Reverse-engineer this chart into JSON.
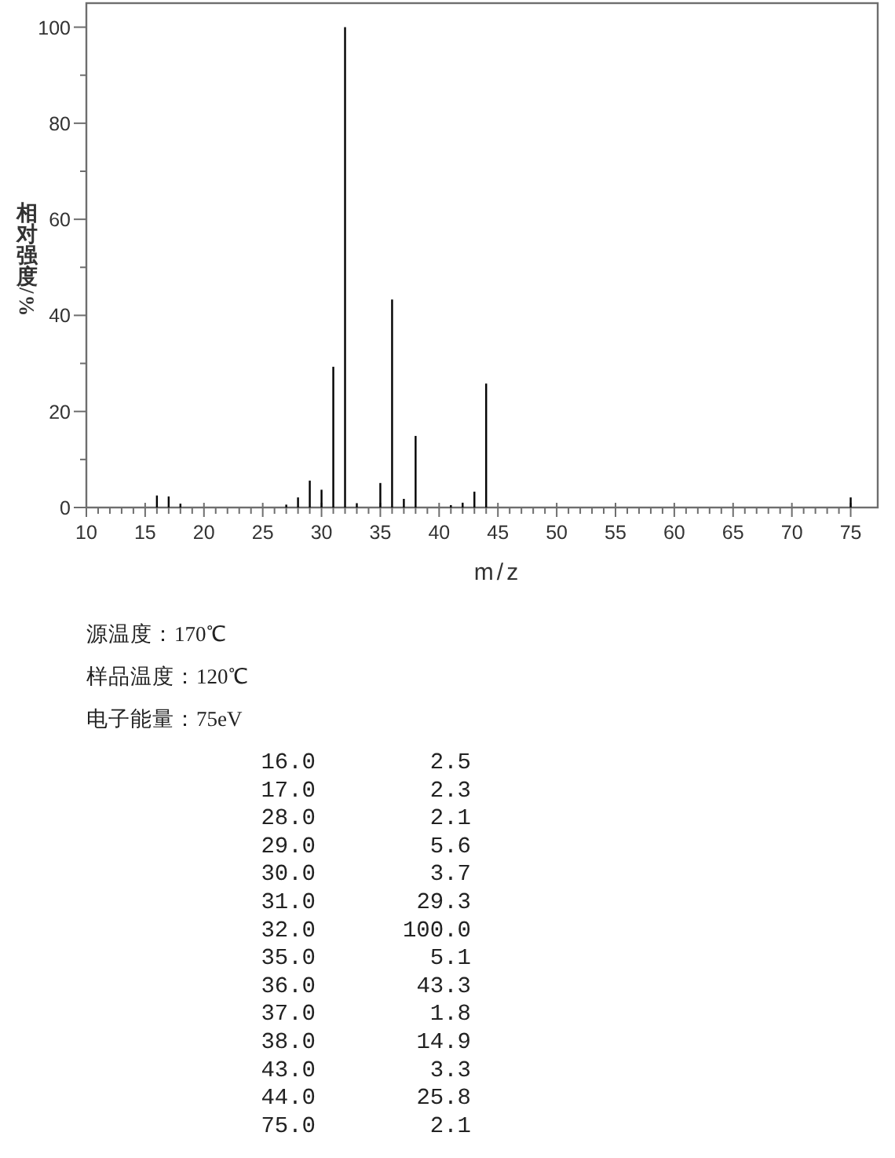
{
  "chart_data": [
    {
      "type": "bar",
      "xlabel": "m/z",
      "ylabel": "相对强度/%",
      "x": [
        16,
        17,
        18,
        27,
        28,
        29,
        30,
        31,
        32,
        33,
        35,
        36,
        37,
        38,
        41,
        42,
        43,
        44,
        75
      ],
      "values": [
        2.5,
        2.3,
        0.8,
        0.6,
        2.1,
        5.6,
        3.7,
        29.3,
        100,
        0.9,
        5.1,
        43.3,
        1.8,
        14.9,
        0.5,
        1.0,
        3.3,
        25.8,
        2.1
      ],
      "color": "#000000",
      "xlim": [
        10,
        77.3
      ],
      "ylim": [
        0,
        105
      ],
      "xticks": [
        10,
        {
          "value": 11,
          "label": null
        },
        {
          "value": 12,
          "label": null
        },
        {
          "value": 13,
          "label": null
        },
        {
          "value": 14,
          "label": null
        },
        15,
        {
          "value": 16,
          "label": null
        },
        {
          "value": 17,
          "label": null
        },
        {
          "value": 18,
          "label": null
        },
        {
          "value": 19,
          "label": null
        },
        20,
        {
          "value": 21,
          "label": null
        },
        {
          "value": 22,
          "label": null
        },
        {
          "value": 23,
          "label": null
        },
        {
          "value": 24,
          "label": null
        },
        25,
        {
          "value": 26,
          "label": null
        },
        {
          "value": 27,
          "label": null
        },
        {
          "value": 28,
          "label": null
        },
        {
          "value": 29,
          "label": null
        },
        30,
        {
          "value": 31,
          "label": null
        },
        {
          "value": 32,
          "label": null
        },
        {
          "value": 33,
          "label": null
        },
        {
          "value": 34,
          "label": null
        },
        35,
        {
          "value": 36,
          "label": null
        },
        {
          "value": 37,
          "label": null
        },
        {
          "value": 38,
          "label": null
        },
        {
          "value": 39,
          "label": null
        },
        40,
        {
          "value": 41,
          "label": null
        },
        {
          "value": 42,
          "label": null
        },
        {
          "value": 43,
          "label": null
        },
        {
          "value": 44,
          "label": null
        },
        45,
        {
          "value": 46,
          "label": null
        },
        {
          "value": 47,
          "label": null
        },
        {
          "value": 48,
          "label": null
        },
        {
          "value": 49,
          "label": null
        },
        50,
        {
          "value": 51,
          "label": null
        },
        {
          "value": 52,
          "label": null
        },
        {
          "value": 53,
          "label": null
        },
        {
          "value": 54,
          "label": null
        },
        55,
        {
          "value": 56,
          "label": null
        },
        {
          "value": 57,
          "label": null
        },
        {
          "value": 58,
          "label": null
        },
        {
          "value": 59,
          "label": null
        },
        60,
        {
          "value": 61,
          "label": null
        },
        {
          "value": 62,
          "label": null
        },
        {
          "value": 63,
          "label": null
        },
        {
          "value": 64,
          "label": null
        },
        65,
        {
          "value": 66,
          "label": null
        },
        {
          "value": 67,
          "label": null
        },
        {
          "value": 68,
          "label": null
        },
        {
          "value": 69,
          "label": null
        },
        70,
        {
          "value": 71,
          "label": null
        },
        {
          "value": 72,
          "label": null
        },
        {
          "value": 73,
          "label": null
        },
        {
          "value": 74,
          "label": null
        },
        75
      ],
      "yticks": [
        0,
        {
          "value": 10,
          "label": null
        },
        20,
        {
          "value": 30,
          "label": null
        },
        40,
        {
          "value": 50,
          "label": null
        },
        60,
        {
          "value": 70,
          "label": null
        },
        80,
        {
          "value": 90,
          "label": null
        },
        100
      ]
    },
    {
      "type": "other",
      "annotations": [
        "源温度：170℃",
        "样品温度：120℃",
        "电子能量：75eV"
      ]
    },
    {
      "type": "other",
      "annotations": [
        "16.0 2.5",
        "17.0 2.3",
        "28.0 2.1",
        "29.0 5.6",
        "30.0 3.7",
        "31.0 29.3",
        "32.0 100.0",
        "35.0 5.1",
        "36.0 43.3",
        "37.0 1.8",
        "38.0 14.9",
        "43.0 3.3",
        "44.0 25.8",
        "75.0 2.1"
      ]
    }
  ]
}
